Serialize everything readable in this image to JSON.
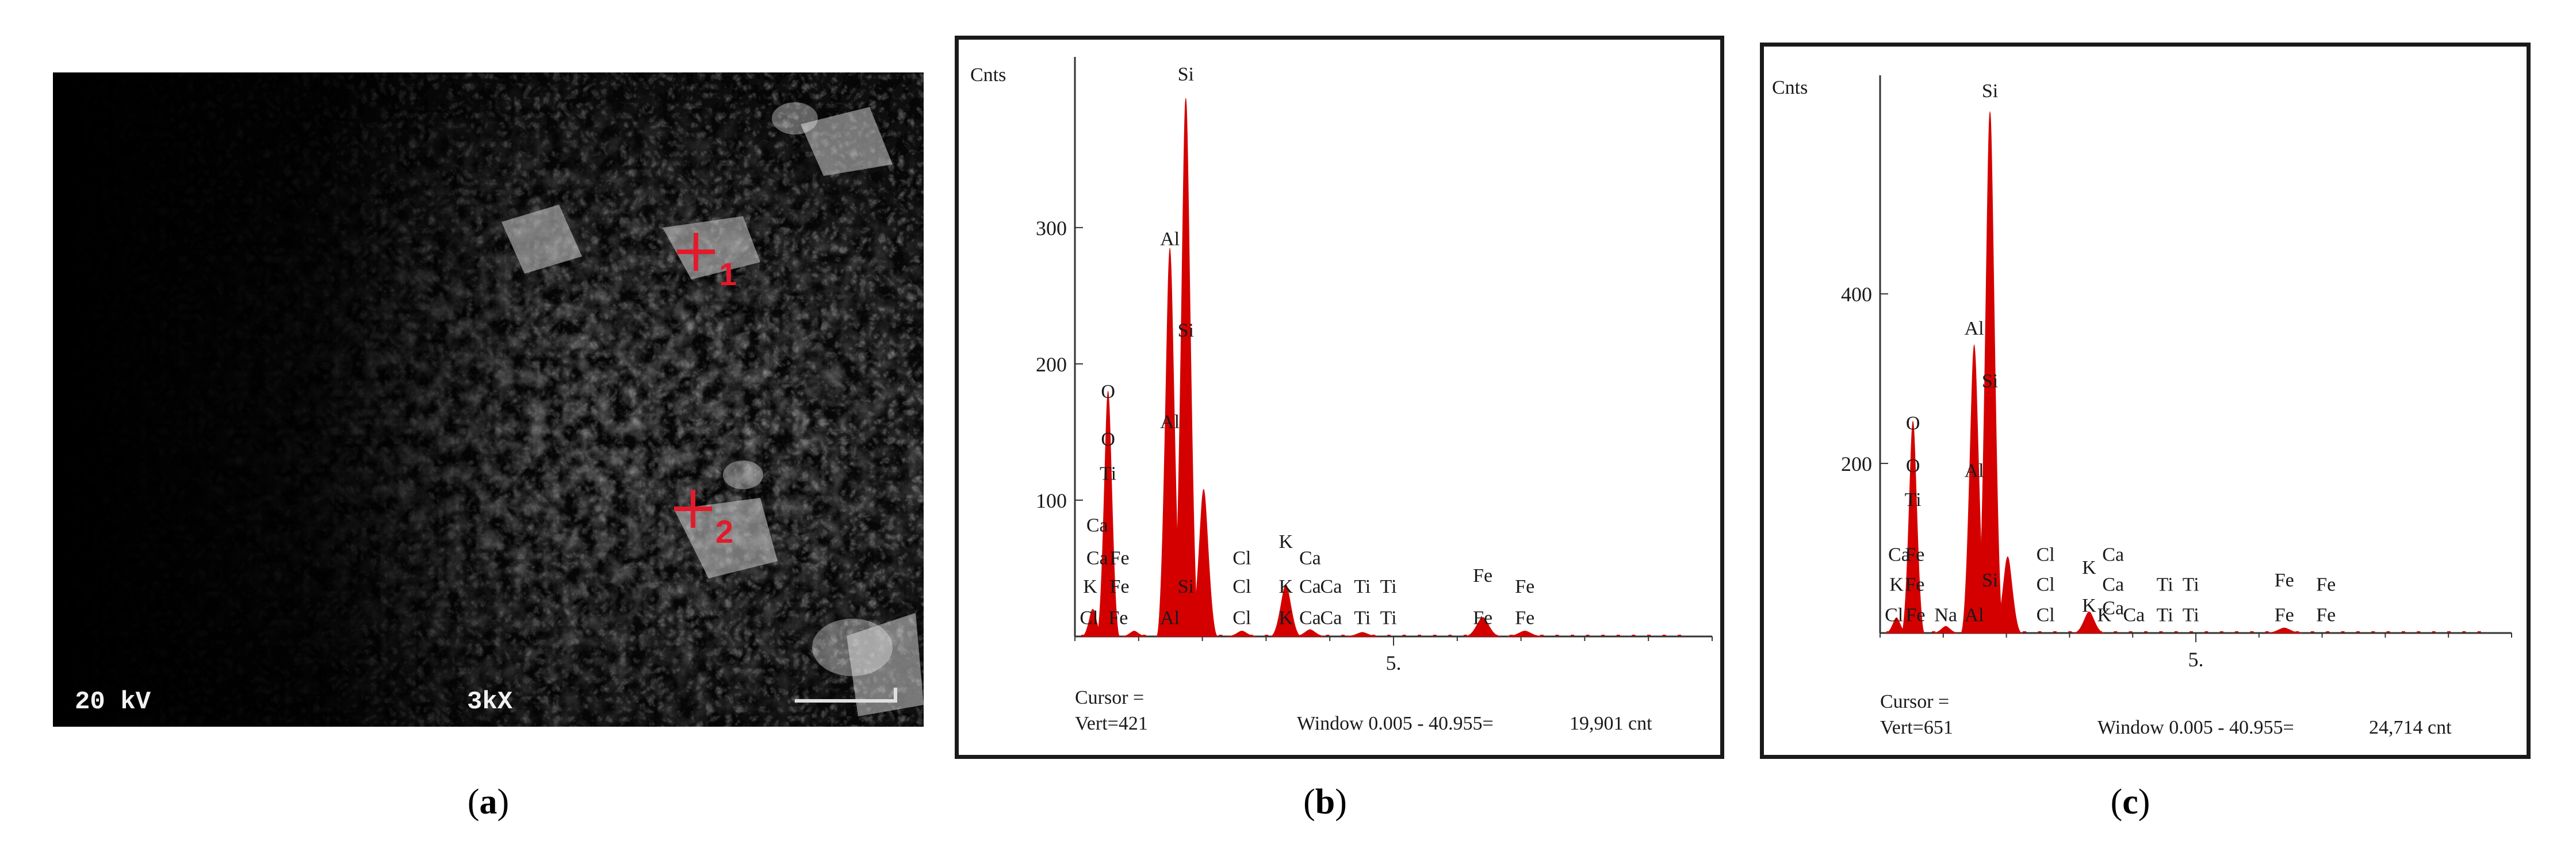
{
  "sem": {
    "voltage": "20 kV",
    "magnification": "3kX",
    "points": [
      {
        "label": "1"
      },
      {
        "label": "2"
      }
    ],
    "marker_color": "#e31a2c"
  },
  "captions": {
    "a": "a",
    "b": "b",
    "c": "c"
  },
  "chart_data": [
    {
      "type": "line",
      "ylabel": "Cnts",
      "y_ticks": [
        100,
        200,
        300
      ],
      "ylim": [
        0,
        421
      ],
      "x_tick_label": "5.",
      "xlim": [
        0,
        10
      ],
      "cursor_label": "Cursor =",
      "vert_label": "Vert=421",
      "window_label": "Window 0.005 - 40.955=",
      "count_label": "19,901 cnt",
      "fill_color": "#d40000",
      "peaks": [
        {
          "x": 0.28,
          "y": 20
        },
        {
          "x": 0.52,
          "y": 180
        },
        {
          "x": 0.93,
          "y": 4
        },
        {
          "x": 1.49,
          "y": 285
        },
        {
          "x": 1.74,
          "y": 395
        },
        {
          "x": 2.02,
          "y": 108
        },
        {
          "x": 2.62,
          "y": 4
        },
        {
          "x": 3.31,
          "y": 38
        },
        {
          "x": 3.69,
          "y": 5
        },
        {
          "x": 4.51,
          "y": 3
        },
        {
          "x": 6.4,
          "y": 14
        },
        {
          "x": 7.06,
          "y": 4
        }
      ],
      "element_labels": [
        {
          "text": "Si",
          "x": 1.74,
          "y": 408
        },
        {
          "text": "Al",
          "x": 1.49,
          "y": 287
        },
        {
          "text": "Si",
          "x": 1.74,
          "y": 220
        },
        {
          "text": "Al",
          "x": 1.49,
          "y": 153
        },
        {
          "text": "O",
          "x": 0.52,
          "y": 175
        },
        {
          "text": "O",
          "x": 0.52,
          "y": 140
        },
        {
          "text": "Ti",
          "x": 0.52,
          "y": 115
        },
        {
          "text": "Ca",
          "x": 0.35,
          "y": 77
        },
        {
          "text": "Ca",
          "x": 0.35,
          "y": 53
        },
        {
          "text": "Fe",
          "x": 0.7,
          "y": 53
        },
        {
          "text": "K",
          "x": 0.24,
          "y": 32
        },
        {
          "text": "Fe",
          "x": 0.7,
          "y": 32
        },
        {
          "text": "Cl",
          "x": 0.22,
          "y": 9
        },
        {
          "text": "Fe",
          "x": 0.68,
          "y": 9
        },
        {
          "text": "Al",
          "x": 1.49,
          "y": 9
        },
        {
          "text": "Si",
          "x": 1.74,
          "y": 32
        },
        {
          "text": "Cl",
          "x": 2.62,
          "y": 53
        },
        {
          "text": "Cl",
          "x": 2.62,
          "y": 32
        },
        {
          "text": "Cl",
          "x": 2.62,
          "y": 9
        },
        {
          "text": "K",
          "x": 3.31,
          "y": 65
        },
        {
          "text": "Ca",
          "x": 3.69,
          "y": 53
        },
        {
          "text": "K",
          "x": 3.31,
          "y": 32
        },
        {
          "text": "K",
          "x": 3.31,
          "y": 9
        },
        {
          "text": "Ca",
          "x": 3.69,
          "y": 9
        },
        {
          "text": "Ca",
          "x": 3.69,
          "y": 32
        },
        {
          "text": "Ca",
          "x": 4.02,
          "y": 32
        },
        {
          "text": "Ca",
          "x": 4.02,
          "y": 9
        },
        {
          "text": "Ti",
          "x": 4.51,
          "y": 32
        },
        {
          "text": "Ti",
          "x": 4.92,
          "y": 32
        },
        {
          "text": "Ti",
          "x": 4.51,
          "y": 9
        },
        {
          "text": "Ti",
          "x": 4.92,
          "y": 9
        },
        {
          "text": "Fe",
          "x": 6.4,
          "y": 40
        },
        {
          "text": "Fe",
          "x": 7.06,
          "y": 32
        },
        {
          "text": "Fe",
          "x": 6.4,
          "y": 9
        },
        {
          "text": "Fe",
          "x": 7.06,
          "y": 9
        }
      ]
    },
    {
      "type": "line",
      "ylabel": "Cnts",
      "y_ticks": [
        200,
        400
      ],
      "ylim": [
        0,
        651
      ],
      "x_tick_label": "5.",
      "xlim": [
        0,
        10
      ],
      "cursor_label": "Cursor =",
      "vert_label": "Vert=651",
      "window_label": "Window 0.005 - 40.955=",
      "count_label": "24,714 cnt",
      "fill_color": "#d40000",
      "peaks": [
        {
          "x": 0.26,
          "y": 18
        },
        {
          "x": 0.52,
          "y": 250
        },
        {
          "x": 1.04,
          "y": 8
        },
        {
          "x": 1.49,
          "y": 340
        },
        {
          "x": 1.74,
          "y": 615
        },
        {
          "x": 2.02,
          "y": 90
        },
        {
          "x": 3.31,
          "y": 25
        },
        {
          "x": 6.4,
          "y": 6
        }
      ],
      "element_labels": [
        {
          "text": "Si",
          "x": 1.74,
          "y": 632
        },
        {
          "text": "Al",
          "x": 1.49,
          "y": 352
        },
        {
          "text": "Si",
          "x": 1.74,
          "y": 290
        },
        {
          "text": "Al",
          "x": 1.49,
          "y": 184
        },
        {
          "text": "O",
          "x": 0.52,
          "y": 240
        },
        {
          "text": "O",
          "x": 0.52,
          "y": 190
        },
        {
          "text": "Ti",
          "x": 0.52,
          "y": 150
        },
        {
          "text": "Ca",
          "x": 0.3,
          "y": 85
        },
        {
          "text": "Fe",
          "x": 0.55,
          "y": 85
        },
        {
          "text": "K",
          "x": 0.26,
          "y": 50
        },
        {
          "text": "Fe",
          "x": 0.55,
          "y": 50
        },
        {
          "text": "Cl",
          "x": 0.22,
          "y": 14
        },
        {
          "text": "Fe",
          "x": 0.56,
          "y": 14
        },
        {
          "text": "Na",
          "x": 1.04,
          "y": 14
        },
        {
          "text": "Al",
          "x": 1.49,
          "y": 14
        },
        {
          "text": "Si",
          "x": 1.74,
          "y": 55
        },
        {
          "text": "Cl",
          "x": 2.62,
          "y": 85
        },
        {
          "text": "Cl",
          "x": 2.62,
          "y": 50
        },
        {
          "text": "Cl",
          "x": 2.62,
          "y": 14
        },
        {
          "text": "K",
          "x": 3.31,
          "y": 70
        },
        {
          "text": "Ca",
          "x": 3.69,
          "y": 85
        },
        {
          "text": "Ca",
          "x": 3.69,
          "y": 50
        },
        {
          "text": "K",
          "x": 3.31,
          "y": 25
        },
        {
          "text": "K",
          "x": 3.55,
          "y": 14
        },
        {
          "text": "Ca",
          "x": 3.69,
          "y": 22
        },
        {
          "text": "Ca",
          "x": 4.02,
          "y": 14
        },
        {
          "text": "Ti",
          "x": 4.51,
          "y": 50
        },
        {
          "text": "Ti",
          "x": 4.92,
          "y": 50
        },
        {
          "text": "Ti",
          "x": 4.51,
          "y": 14
        },
        {
          "text": "Ti",
          "x": 4.92,
          "y": 14
        },
        {
          "text": "Fe",
          "x": 6.4,
          "y": 55
        },
        {
          "text": "Fe",
          "x": 7.06,
          "y": 50
        },
        {
          "text": "Fe",
          "x": 6.4,
          "y": 14
        },
        {
          "text": "Fe",
          "x": 7.06,
          "y": 14
        }
      ]
    }
  ]
}
